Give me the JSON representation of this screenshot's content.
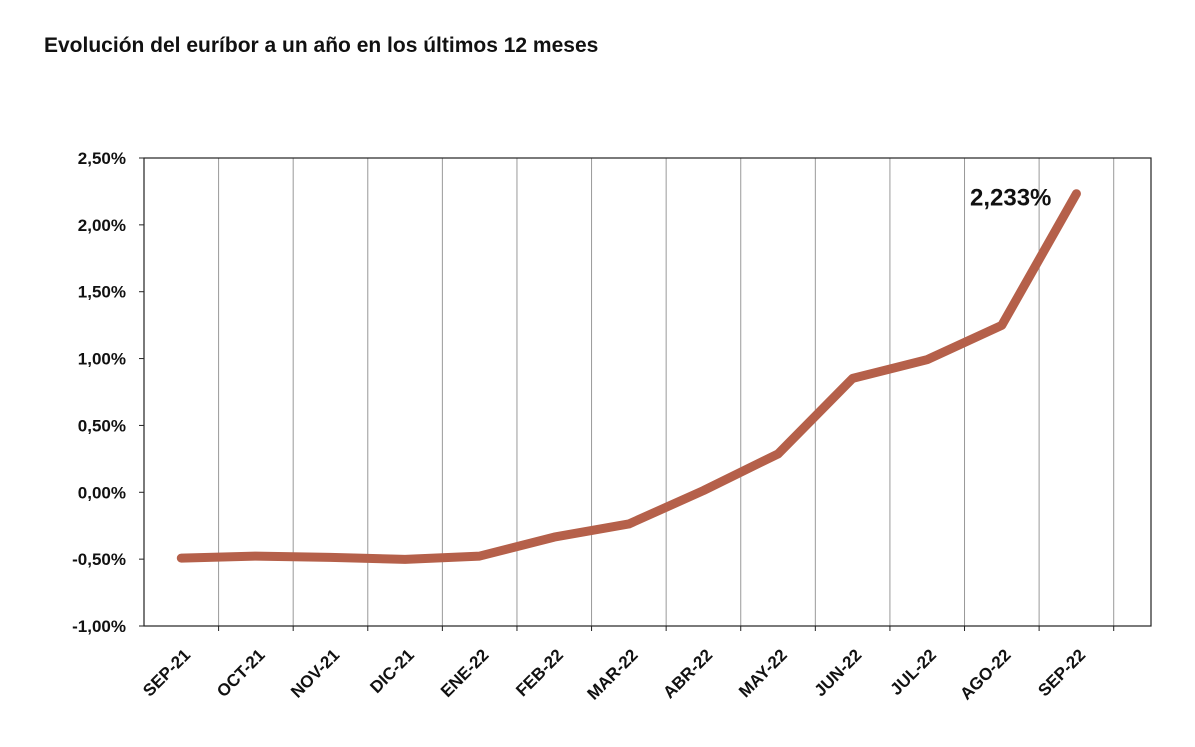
{
  "chart_data": {
    "type": "line",
    "title": "Evolución del euríbor a un año en los últimos 12 meses",
    "categories": [
      "SEP-21",
      "OCT-21",
      "NOV-21",
      "DIC-21",
      "ENE-22",
      "FEB-22",
      "MAR-22",
      "ABR-22",
      "MAY-22",
      "JUN-22",
      "JUL-22",
      "AGO-22",
      "SEP-22"
    ],
    "series": [
      {
        "name": "Euríbor",
        "color": "#b5604a",
        "values": [
          -0.492,
          -0.477,
          -0.487,
          -0.502,
          -0.477,
          -0.335,
          -0.237,
          0.013,
          0.287,
          0.852,
          0.992,
          1.249,
          2.233
        ]
      }
    ],
    "annotation": "2,233%",
    "ylim": [
      -1,
      2.5
    ],
    "yticks": [
      {
        "value": -1,
        "label": "-1,00%"
      },
      {
        "value": -0.5,
        "label": "-0,50%"
      },
      {
        "value": 0,
        "label": "0,00%"
      },
      {
        "value": 0.5,
        "label": "0,50%"
      },
      {
        "value": 1,
        "label": "1,00%"
      },
      {
        "value": 1.5,
        "label": "1,50%"
      },
      {
        "value": 2,
        "label": "2,00%"
      },
      {
        "value": 2.5,
        "label": "2,50%"
      }
    ],
    "grid": true
  }
}
